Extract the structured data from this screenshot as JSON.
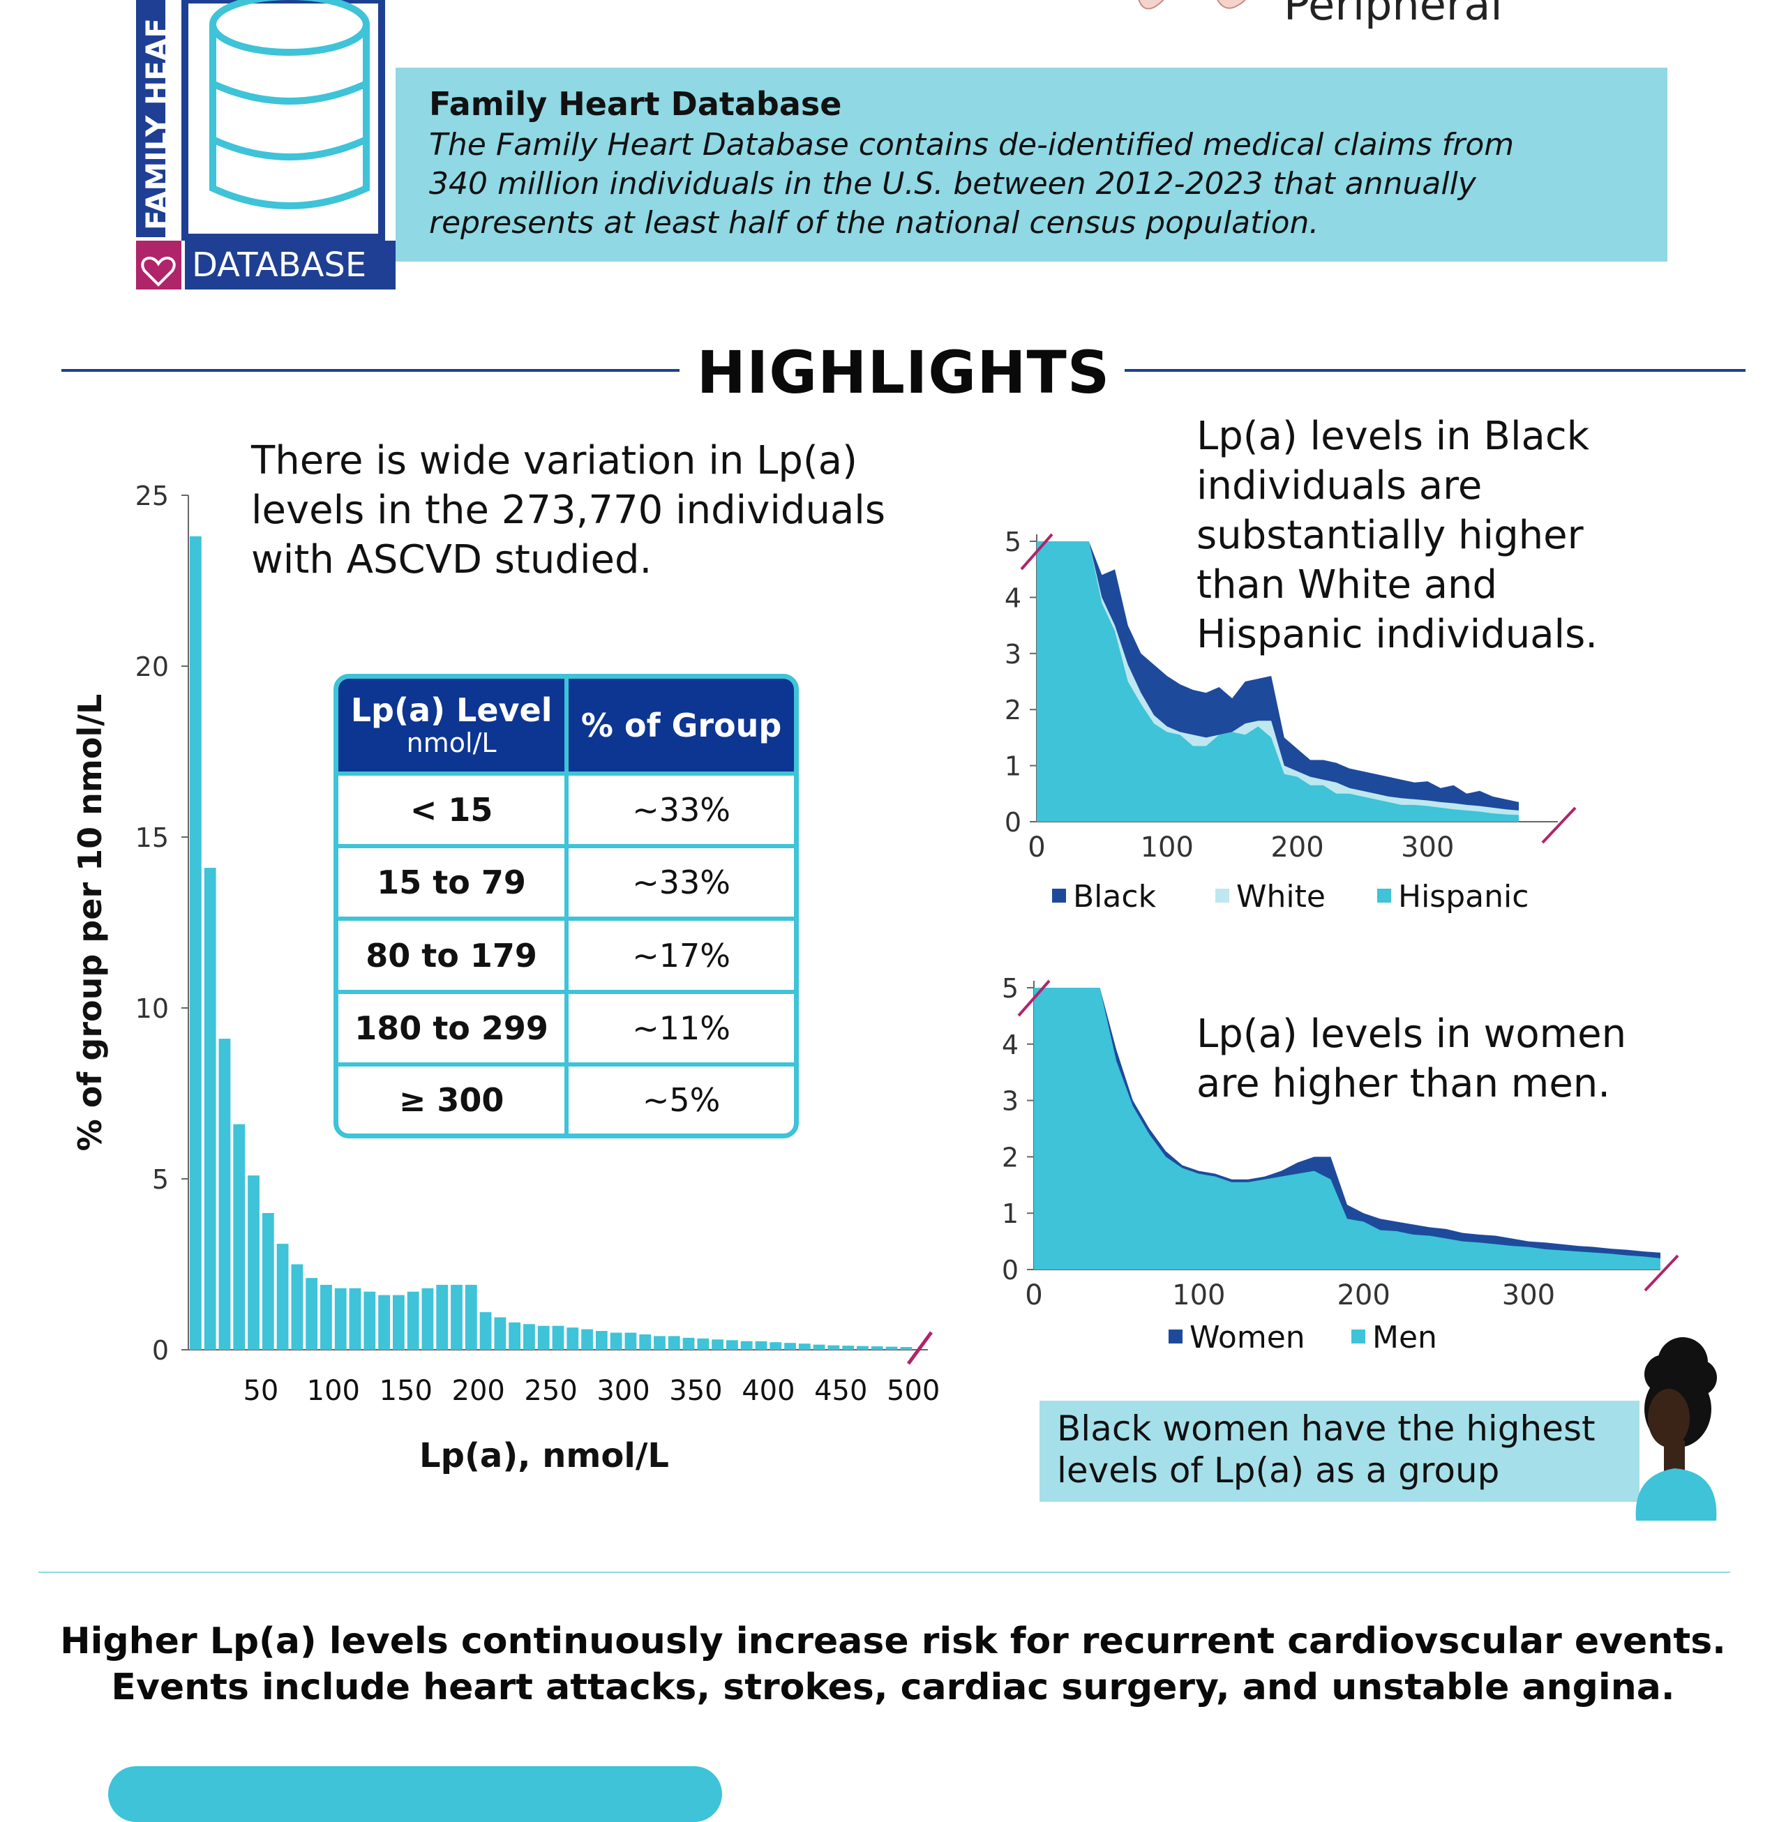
{
  "header": {
    "logo_vertical_text": "FAMILY HEAF",
    "logo_bottom_text": "DATABASE",
    "peripheral_label": "Peripheral",
    "db_title": "Family Heart Database",
    "db_desc_lines": [
      "The Family Heart Database contains de-identified medical claims from",
      "340 million individuals in the U.S. between 2012-2023 that annually",
      "represents at least half of the national census population."
    ]
  },
  "highlights": {
    "title": "HIGHLIGHTS",
    "hist_caption": [
      "There is wide variation in Lp(a)",
      "levels in the 273,770 individuals",
      "with ASCVD studied."
    ],
    "black_caption": [
      "Lp(a) levels in Black",
      "individuals are",
      "substantially higher",
      "than White and",
      "Hispanic individuals."
    ],
    "women_caption": [
      "Lp(a) levels in women",
      "are higher than men."
    ]
  },
  "table": {
    "header_level": "Lp(a) Level",
    "header_unit": "nmol/L",
    "header_pct": "% of Group",
    "rows": [
      {
        "level": "< 15",
        "pct": "~33%"
      },
      {
        "level": "15 to 79",
        "pct": "~33%"
      },
      {
        "level": "80 to 179",
        "pct": "~17%"
      },
      {
        "level": "180 to 299",
        "pct": "~11%"
      },
      {
        "level": "≥ 300",
        "pct": "~5%"
      }
    ]
  },
  "colors": {
    "navy": "#1e4a9c",
    "cyan": "#3ec3d8",
    "light": "#bfe7ef",
    "magenta": "#b0246a"
  },
  "chart_data": [
    {
      "type": "bar",
      "ylabel": "%  of group per 10 nmol/L",
      "xlabel": "Lp(a), nmol/L",
      "ylim": [
        0,
        25
      ],
      "xlim": [
        0,
        510
      ],
      "yticks": [
        0,
        5,
        10,
        15,
        20,
        25
      ],
      "xticks": [
        50,
        100,
        150,
        200,
        250,
        300,
        350,
        400,
        450,
        500
      ],
      "bin_width": 10,
      "values": [
        23.8,
        14.1,
        9.1,
        6.6,
        5.1,
        4.0,
        3.1,
        2.5,
        2.1,
        1.9,
        1.8,
        1.8,
        1.7,
        1.6,
        1.6,
        1.7,
        1.8,
        1.9,
        1.9,
        1.9,
        1.1,
        0.95,
        0.8,
        0.75,
        0.7,
        0.7,
        0.65,
        0.6,
        0.55,
        0.5,
        0.5,
        0.45,
        0.4,
        0.4,
        0.35,
        0.33,
        0.3,
        0.28,
        0.25,
        0.25,
        0.22,
        0.2,
        0.18,
        0.15,
        0.13,
        0.12,
        0.11,
        0.1,
        0.09,
        0.08
      ]
    },
    {
      "type": "area",
      "yticks": [
        0,
        1,
        2,
        3,
        4,
        5
      ],
      "ylim": [
        0,
        5
      ],
      "xticks": [
        0,
        100,
        200,
        300
      ],
      "xlim": [
        0,
        400
      ],
      "x": [
        0,
        10,
        20,
        30,
        40,
        50,
        60,
        70,
        80,
        90,
        100,
        110,
        120,
        130,
        140,
        150,
        160,
        170,
        180,
        190,
        200,
        210,
        220,
        230,
        240,
        250,
        260,
        270,
        280,
        290,
        300,
        310,
        320,
        330,
        340,
        350,
        360,
        370
      ],
      "series": [
        {
          "name": "Black",
          "values": [
            5,
            5,
            5,
            5,
            5,
            4.4,
            4.5,
            3.5,
            3.0,
            2.8,
            2.6,
            2.45,
            2.35,
            2.3,
            2.4,
            2.2,
            2.5,
            2.55,
            2.6,
            1.5,
            1.3,
            1.1,
            1.1,
            1.05,
            0.95,
            0.9,
            0.85,
            0.8,
            0.75,
            0.7,
            0.72,
            0.6,
            0.65,
            0.5,
            0.55,
            0.45,
            0.4,
            0.35
          ]
        },
        {
          "name": "White",
          "values": [
            5,
            5,
            5,
            5,
            5,
            4.0,
            3.5,
            2.8,
            2.3,
            1.9,
            1.7,
            1.6,
            1.55,
            1.5,
            1.55,
            1.6,
            1.75,
            1.8,
            1.8,
            1.0,
            0.9,
            0.8,
            0.75,
            0.7,
            0.6,
            0.55,
            0.5,
            0.45,
            0.42,
            0.4,
            0.38,
            0.35,
            0.33,
            0.3,
            0.28,
            0.25,
            0.22,
            0.2
          ]
        },
        {
          "name": "Hispanic",
          "values": [
            5,
            5,
            5,
            5,
            5,
            3.9,
            3.4,
            2.5,
            2.1,
            1.75,
            1.6,
            1.55,
            1.35,
            1.35,
            1.55,
            1.6,
            1.55,
            1.7,
            1.5,
            0.85,
            0.8,
            0.65,
            0.65,
            0.5,
            0.5,
            0.45,
            0.4,
            0.35,
            0.3,
            0.3,
            0.28,
            0.25,
            0.22,
            0.2,
            0.18,
            0.15,
            0.13,
            0.12
          ]
        }
      ]
    },
    {
      "type": "area",
      "yticks": [
        0,
        1,
        2,
        3,
        4,
        5
      ],
      "ylim": [
        0,
        5
      ],
      "xticks": [
        0,
        100,
        200,
        300
      ],
      "xlim": [
        0,
        380
      ],
      "x": [
        0,
        10,
        20,
        30,
        40,
        50,
        60,
        70,
        80,
        90,
        100,
        110,
        120,
        130,
        140,
        150,
        160,
        170,
        180,
        190,
        200,
        210,
        220,
        230,
        240,
        250,
        260,
        270,
        280,
        290,
        300,
        310,
        320,
        330,
        340,
        350,
        360,
        370,
        380
      ],
      "series": [
        {
          "name": "Women",
          "values": [
            5,
            5,
            5,
            5,
            5,
            3.9,
            3.0,
            2.5,
            2.1,
            1.85,
            1.75,
            1.7,
            1.6,
            1.6,
            1.65,
            1.75,
            1.9,
            2.0,
            2.0,
            1.15,
            1.0,
            0.9,
            0.85,
            0.8,
            0.75,
            0.72,
            0.65,
            0.62,
            0.6,
            0.55,
            0.5,
            0.48,
            0.45,
            0.42,
            0.4,
            0.37,
            0.35,
            0.32,
            0.3
          ]
        },
        {
          "name": "Men",
          "values": [
            5,
            5,
            5,
            5,
            5,
            3.7,
            2.9,
            2.4,
            2.0,
            1.8,
            1.7,
            1.65,
            1.55,
            1.55,
            1.6,
            1.65,
            1.7,
            1.75,
            1.6,
            0.9,
            0.85,
            0.7,
            0.68,
            0.62,
            0.6,
            0.55,
            0.5,
            0.48,
            0.45,
            0.42,
            0.4,
            0.36,
            0.34,
            0.32,
            0.3,
            0.28,
            0.25,
            0.23,
            0.2
          ]
        }
      ]
    }
  ],
  "callout": {
    "text_lines": [
      "Black women have the highest",
      "levels of Lp(a) as a group"
    ]
  },
  "footer": {
    "lines": [
      "Higher Lp(a) levels continuously increase risk for recurrent cardiovscular events.",
      "Events include heart attacks, strokes, cardiac surgery, and unstable angina."
    ]
  }
}
